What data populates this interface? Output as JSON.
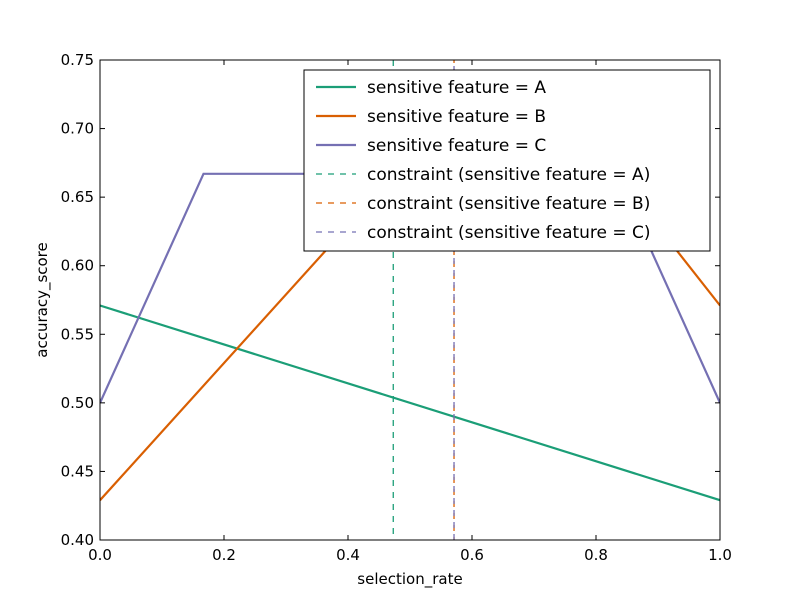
{
  "chart_data": {
    "type": "line",
    "title": "",
    "xlabel": "selection_rate",
    "ylabel": "accuracy_score",
    "xlim": [
      0.0,
      1.0
    ],
    "ylim": [
      0.4,
      0.75
    ],
    "xticks": [
      "0.0",
      "0.2",
      "0.4",
      "0.6",
      "0.8",
      "1.0"
    ],
    "yticks": [
      "0.40",
      "0.45",
      "0.50",
      "0.55",
      "0.60",
      "0.65",
      "0.70",
      "0.75"
    ],
    "grid": false,
    "legend_position": "top-right",
    "series": [
      {
        "name": "sensitive feature = A",
        "color": "#1b9e77",
        "style": "solid",
        "points": [
          [
            0.0,
            0.571
          ],
          [
            1.0,
            0.429
          ]
        ]
      },
      {
        "name": "sensitive feature = B",
        "color": "#d95f02",
        "style": "solid",
        "points": [
          [
            0.0,
            0.429
          ],
          [
            0.4,
            0.629
          ],
          [
            0.571,
            0.714
          ],
          [
            0.8,
            0.686
          ],
          [
            1.0,
            0.571
          ]
        ]
      },
      {
        "name": "sensitive feature = C",
        "color": "#7570b3",
        "style": "solid",
        "points": [
          [
            0.0,
            0.5
          ],
          [
            0.167,
            0.667
          ],
          [
            0.5,
            0.667
          ],
          [
            0.75,
            0.667
          ],
          [
            0.889,
            0.611
          ],
          [
            1.0,
            0.5
          ]
        ]
      }
    ],
    "constraints": [
      {
        "name": "constraint (sensitive feature = A)",
        "color": "#1b9e77",
        "style": "dashed",
        "x": 0.473
      },
      {
        "name": "constraint (sensitive feature = B)",
        "color": "#d95f02",
        "style": "dashed",
        "x": 0.571
      },
      {
        "name": "constraint (sensitive feature = C)",
        "color": "#7570b3",
        "style": "dashed",
        "x": 0.571
      }
    ]
  }
}
